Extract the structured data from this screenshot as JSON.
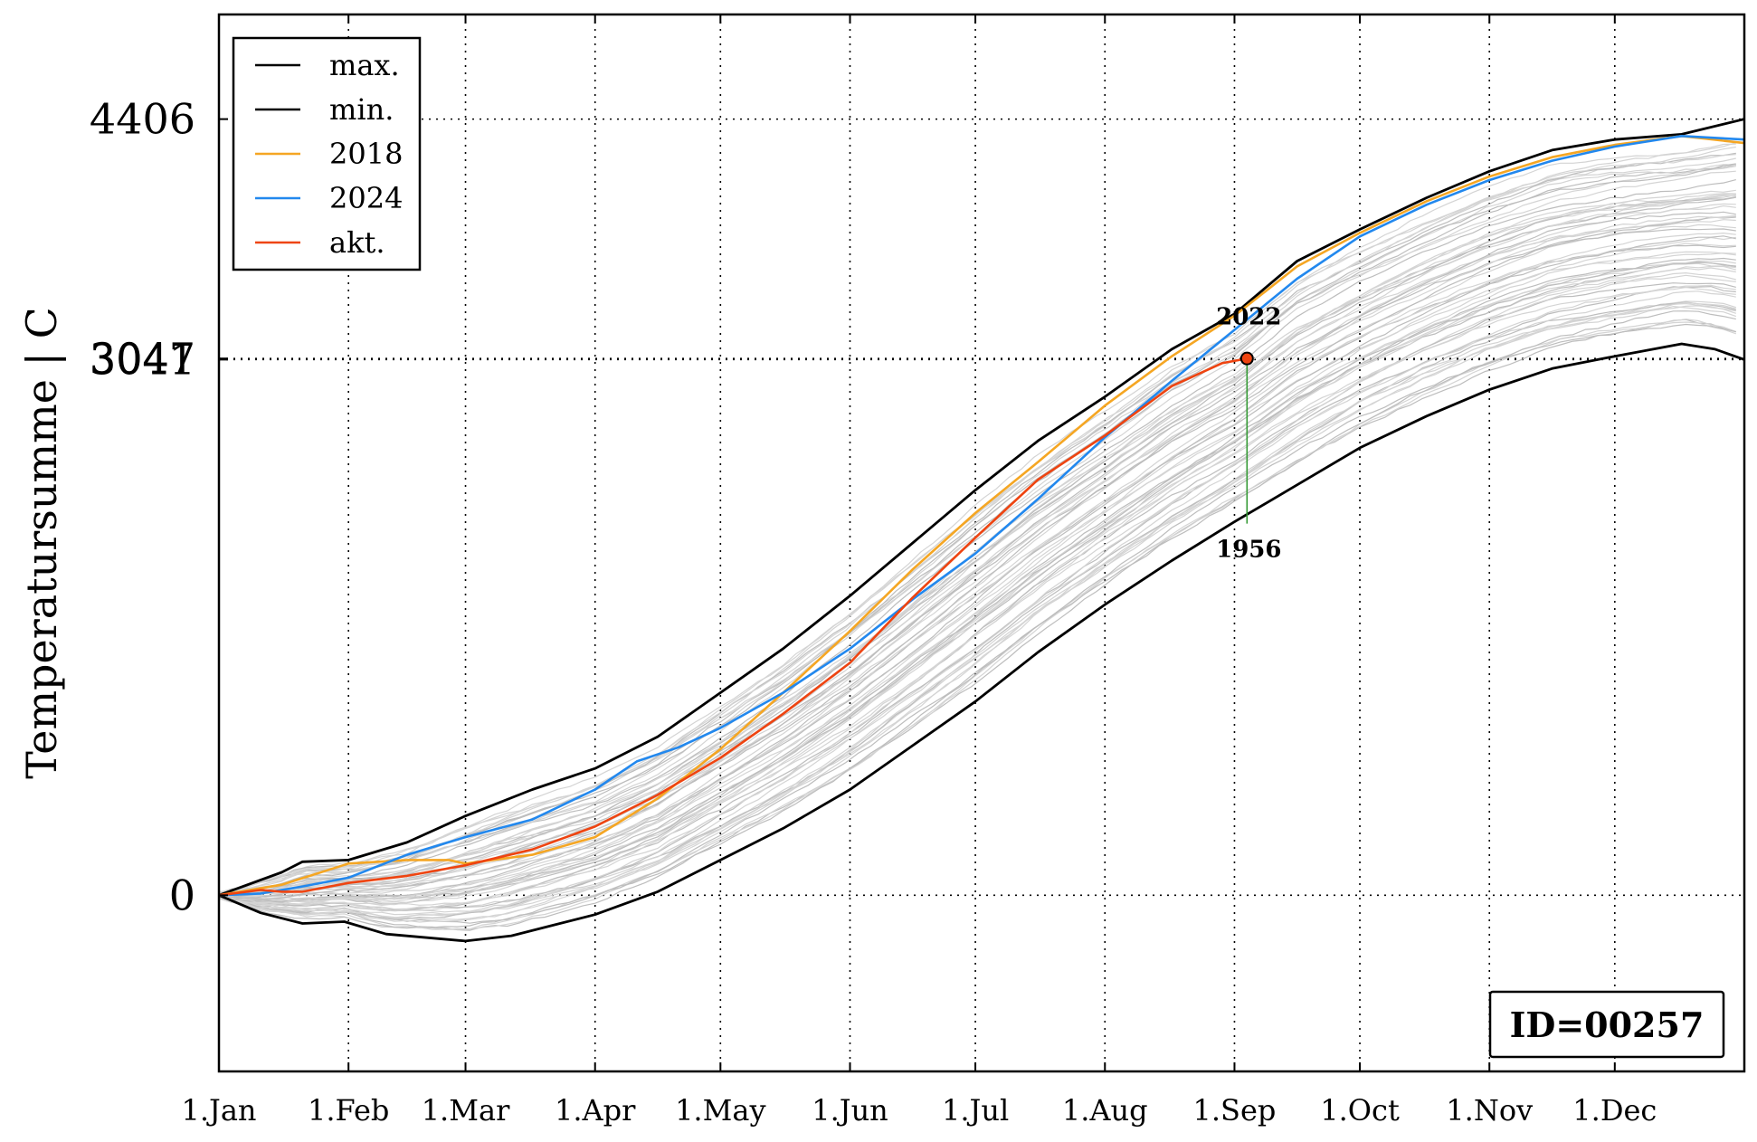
{
  "chart_data": {
    "type": "line",
    "ylabel": "Temperatursumme | C",
    "x_tick_labels": [
      "1.Jan",
      "1.Feb",
      "1.Mar",
      "1.Apr",
      "1.May",
      "1.Jun",
      "1.Jul",
      "1.Aug",
      "1.Sep",
      "1.Oct",
      "1.Nov",
      "1.Dec"
    ],
    "x_tick_days": [
      0,
      31,
      59,
      90,
      120,
      151,
      181,
      212,
      243,
      273,
      304,
      334
    ],
    "xlim": [
      0,
      365
    ],
    "ylim": [
      -1000,
      5000
    ],
    "y_ticks": [
      {
        "value": 0,
        "label": "0"
      },
      {
        "value": 3041,
        "label": "3041"
      },
      {
        "value": 3047,
        "label": "3047"
      },
      {
        "value": 4406,
        "label": "4406"
      }
    ],
    "grid": true,
    "legend_position": "top-left",
    "legend": [
      {
        "label": "max.",
        "color": "#000000"
      },
      {
        "label": "min.",
        "color": "#000000"
      },
      {
        "label": "2018",
        "color": "#f5a623"
      },
      {
        "label": "2024",
        "color": "#2288ee"
      },
      {
        "label": "akt.",
        "color": "#ee4411"
      }
    ],
    "series": [
      {
        "name": "max.",
        "color": "#000000",
        "x": [
          0,
          15,
          20,
          31,
          45,
          59,
          75,
          90,
          105,
          120,
          135,
          151,
          166,
          181,
          196,
          212,
          228,
          243,
          258,
          273,
          289,
          304,
          319,
          334,
          350,
          365
        ],
        "y": [
          0,
          130,
          190,
          200,
          300,
          450,
          600,
          720,
          900,
          1150,
          1400,
          1700,
          2000,
          2300,
          2580,
          2830,
          3100,
          3300,
          3600,
          3780,
          3960,
          4110,
          4230,
          4290,
          4320,
          4406
        ]
      },
      {
        "name": "min.",
        "color": "#000000",
        "x": [
          0,
          10,
          20,
          30,
          40,
          59,
          70,
          80,
          90,
          105,
          120,
          135,
          151,
          166,
          181,
          196,
          212,
          228,
          243,
          258,
          273,
          289,
          304,
          319,
          334,
          350,
          358,
          365
        ],
        "y": [
          0,
          -100,
          -160,
          -150,
          -220,
          -260,
          -230,
          -170,
          -110,
          20,
          200,
          380,
          600,
          850,
          1100,
          1380,
          1650,
          1900,
          2120,
          2330,
          2540,
          2720,
          2870,
          2990,
          3060,
          3130,
          3100,
          3041
        ]
      },
      {
        "name": "2018",
        "color": "#f5a623",
        "x": [
          0,
          15,
          31,
          45,
          55,
          59,
          75,
          90,
          105,
          120,
          135,
          151,
          166,
          181,
          196,
          212,
          228,
          243,
          258,
          273,
          289,
          304,
          319,
          334,
          350,
          365
        ],
        "y": [
          0,
          60,
          180,
          200,
          200,
          180,
          230,
          330,
          550,
          830,
          1150,
          1500,
          1850,
          2170,
          2460,
          2780,
          3060,
          3290,
          3570,
          3760,
          3940,
          4080,
          4190,
          4260,
          4310,
          4270
        ]
      },
      {
        "name": "2024",
        "color": "#2288ee",
        "x": [
          0,
          10,
          20,
          31,
          45,
          59,
          75,
          90,
          100,
          110,
          120,
          135,
          151,
          166,
          181,
          196,
          212,
          228,
          243,
          258,
          273,
          289,
          304,
          319,
          334,
          350,
          365
        ],
        "y": [
          0,
          10,
          50,
          100,
          230,
          330,
          430,
          600,
          760,
          840,
          950,
          1150,
          1400,
          1680,
          1940,
          2250,
          2600,
          2920,
          3210,
          3500,
          3740,
          3920,
          4060,
          4170,
          4250,
          4310,
          4290
        ]
      },
      {
        "name": "akt.",
        "color": "#ee4411",
        "x": [
          0,
          10,
          15,
          20,
          31,
          45,
          59,
          75,
          90,
          105,
          120,
          135,
          151,
          166,
          181,
          196,
          212,
          228,
          240,
          246
        ],
        "y": [
          0,
          30,
          20,
          20,
          70,
          110,
          170,
          260,
          390,
          570,
          780,
          1030,
          1320,
          1690,
          2030,
          2360,
          2610,
          2890,
          3020,
          3047
        ]
      }
    ],
    "marker": {
      "x": 246,
      "y": 3047,
      "color": "#ee4411"
    },
    "annotations": [
      {
        "text": "2022",
        "x": 246,
        "y": 3240
      },
      {
        "text": "1956",
        "x": 246,
        "y": 1920
      }
    ],
    "range_line": {
      "x": 246,
      "y_from": 3047,
      "y_to": 2110,
      "color": "#339933"
    },
    "station_id_label": "ID=00257"
  }
}
